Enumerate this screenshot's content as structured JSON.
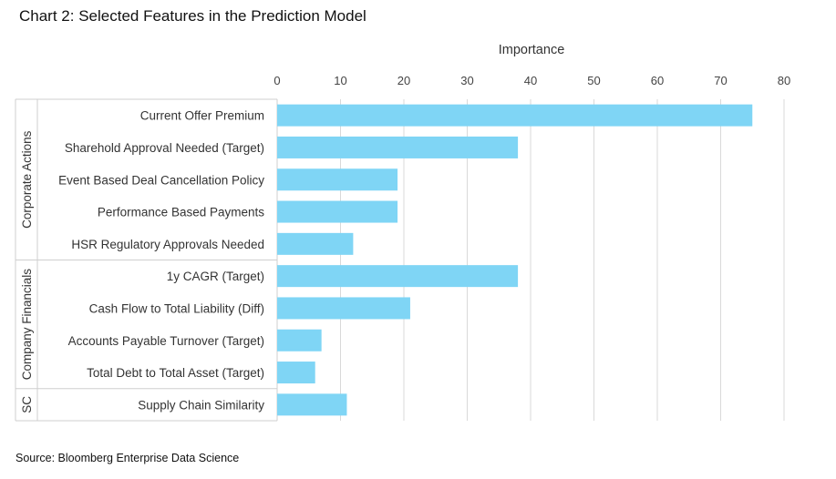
{
  "chart_title": "Chart 2: Selected Features in the Prediction Model",
  "source": "Source: Bloomberg Enterprise Data Science",
  "colors": {
    "bar": "#7fd5f5",
    "grid": "#d9d9d9",
    "frame": "#cfcfcf"
  },
  "chart_data": {
    "type": "bar",
    "orientation": "horizontal",
    "title": "Chart 2: Selected Features in the Prediction Model",
    "xlabel": "Importance",
    "ylabel": "",
    "xlim": [
      0,
      80
    ],
    "xticks": [
      0,
      10,
      20,
      30,
      40,
      50,
      60,
      70,
      80
    ],
    "xaxis_position": "top",
    "grid": true,
    "categories": [
      "Current Offer Premium",
      "Sharehold Approval Needed (Target)",
      "Event Based Deal Cancellation Policy",
      "Performance Based Payments",
      "HSR Regulatory Approvals Needed",
      "1y CAGR (Target)",
      "Cash Flow to Total Liability (Diff)",
      "Accounts Payable Turnover (Target)",
      "Total Debt to Total Asset (Target)",
      "Supply Chain Similarity"
    ],
    "values": [
      75,
      38,
      19,
      19,
      12,
      38,
      21,
      7,
      6,
      11
    ],
    "groups": [
      {
        "name": "Corporate Actions",
        "count": 5
      },
      {
        "name": "Company Financials",
        "count": 4
      },
      {
        "name": "SC",
        "count": 1
      }
    ]
  }
}
